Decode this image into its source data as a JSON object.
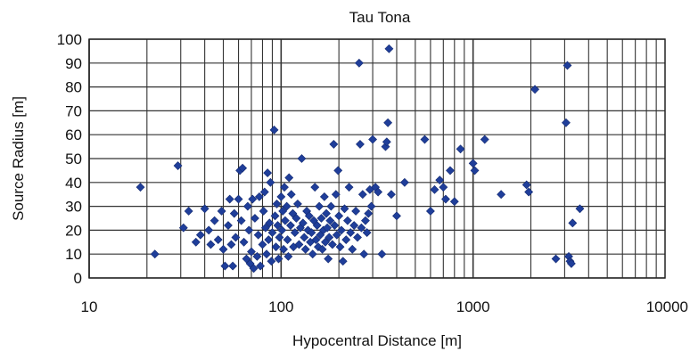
{
  "chart_data": {
    "type": "scatter",
    "title": "Tau Tona",
    "xlabel": "Hypocentral Distance [m]",
    "ylabel": "Source Radius [m]",
    "x_scale": "log",
    "xlim": [
      10,
      10000
    ],
    "ylim": [
      0,
      100
    ],
    "x_ticks": [
      "10",
      "100",
      "1000",
      "10000"
    ],
    "y_ticks": [
      "0",
      "10",
      "20",
      "30",
      "40",
      "50",
      "60",
      "70",
      "80",
      "90",
      "100"
    ],
    "grid": true,
    "legend": "none",
    "marker_color": "#1F3E9A",
    "series": [
      {
        "points": [
          [
            18.5,
            38
          ],
          [
            22,
            10
          ],
          [
            29,
            47
          ],
          [
            31,
            21
          ],
          [
            33,
            28
          ],
          [
            36,
            15
          ],
          [
            38,
            18
          ],
          [
            40,
            29
          ],
          [
            42,
            20
          ],
          [
            43,
            14
          ],
          [
            45,
            24
          ],
          [
            47,
            16
          ],
          [
            49,
            28
          ],
          [
            50,
            12
          ],
          [
            51,
            5
          ],
          [
            53,
            22
          ],
          [
            54,
            33
          ],
          [
            55,
            14
          ],
          [
            56,
            5
          ],
          [
            57,
            27
          ],
          [
            58,
            17
          ],
          [
            60,
            33
          ],
          [
            61,
            45
          ],
          [
            62,
            24
          ],
          [
            63,
            46
          ],
          [
            64,
            15
          ],
          [
            66,
            8
          ],
          [
            67,
            30
          ],
          [
            68,
            20
          ],
          [
            69,
            6
          ],
          [
            70,
            11
          ],
          [
            71,
            33
          ],
          [
            72,
            4
          ],
          [
            73,
            25
          ],
          [
            75,
            9
          ],
          [
            76,
            18
          ],
          [
            77,
            34
          ],
          [
            78,
            5
          ],
          [
            80,
            14
          ],
          [
            81,
            28
          ],
          [
            82,
            36
          ],
          [
            83,
            21
          ],
          [
            84,
            10
          ],
          [
            85,
            44
          ],
          [
            86,
            16
          ],
          [
            87,
            23
          ],
          [
            88,
            40
          ],
          [
            89,
            7
          ],
          [
            90,
            19
          ],
          [
            92,
            62
          ],
          [
            93,
            26
          ],
          [
            94,
            13
          ],
          [
            95,
            31
          ],
          [
            96,
            22
          ],
          [
            97,
            8
          ],
          [
            98,
            17
          ],
          [
            100,
            34
          ],
          [
            101,
            20
          ],
          [
            102,
            28
          ],
          [
            103,
            12
          ],
          [
            104,
            38
          ],
          [
            105,
            24
          ],
          [
            107,
            30
          ],
          [
            108,
            16
          ],
          [
            109,
            9
          ],
          [
            110,
            42
          ],
          [
            112,
            22
          ],
          [
            113,
            35
          ],
          [
            115,
            27
          ],
          [
            116,
            13
          ],
          [
            118,
            19
          ],
          [
            120,
            25
          ],
          [
            122,
            31
          ],
          [
            124,
            14
          ],
          [
            126,
            21
          ],
          [
            128,
            50
          ],
          [
            130,
            23
          ],
          [
            132,
            17
          ],
          [
            134,
            12
          ],
          [
            136,
            28
          ],
          [
            138,
            20
          ],
          [
            140,
            26
          ],
          [
            142,
            15
          ],
          [
            144,
            19
          ],
          [
            146,
            10
          ],
          [
            148,
            24
          ],
          [
            150,
            38
          ],
          [
            152,
            16
          ],
          [
            154,
            22
          ],
          [
            156,
            13
          ],
          [
            158,
            30
          ],
          [
            160,
            18
          ],
          [
            162,
            25
          ],
          [
            164,
            12
          ],
          [
            166,
            20
          ],
          [
            168,
            34
          ],
          [
            170,
            15
          ],
          [
            172,
            27
          ],
          [
            174,
            21
          ],
          [
            176,
            8
          ],
          [
            178,
            17
          ],
          [
            180,
            24
          ],
          [
            182,
            30
          ],
          [
            185,
            14
          ],
          [
            188,
            56
          ],
          [
            190,
            22
          ],
          [
            193,
            35
          ],
          [
            195,
            18
          ],
          [
            198,
            45
          ],
          [
            200,
            26
          ],
          [
            203,
            13
          ],
          [
            206,
            20
          ],
          [
            210,
            7
          ],
          [
            214,
            29
          ],
          [
            218,
            16
          ],
          [
            222,
            24
          ],
          [
            226,
            38
          ],
          [
            230,
            19
          ],
          [
            235,
            12
          ],
          [
            240,
            22
          ],
          [
            245,
            28
          ],
          [
            250,
            17
          ],
          [
            255,
            90
          ],
          [
            258,
            56
          ],
          [
            262,
            21
          ],
          [
            266,
            35
          ],
          [
            270,
            10
          ],
          [
            275,
            24
          ],
          [
            280,
            19
          ],
          [
            285,
            27
          ],
          [
            290,
            37
          ],
          [
            295,
            30
          ],
          [
            300,
            58
          ],
          [
            310,
            38
          ],
          [
            320,
            36
          ],
          [
            335,
            10
          ],
          [
            350,
            55
          ],
          [
            355,
            57
          ],
          [
            360,
            65
          ],
          [
            365,
            96
          ],
          [
            375,
            35
          ],
          [
            400,
            26
          ],
          [
            440,
            40
          ],
          [
            560,
            58
          ],
          [
            600,
            28
          ],
          [
            630,
            37
          ],
          [
            670,
            41
          ],
          [
            700,
            38
          ],
          [
            720,
            33
          ],
          [
            760,
            45
          ],
          [
            800,
            32
          ],
          [
            860,
            54
          ],
          [
            1000,
            48
          ],
          [
            1020,
            45
          ],
          [
            1150,
            58
          ],
          [
            1400,
            35
          ],
          [
            1900,
            39
          ],
          [
            1950,
            36
          ],
          [
            2100,
            79
          ],
          [
            2700,
            8
          ],
          [
            3050,
            65
          ],
          [
            3100,
            89
          ],
          [
            3150,
            9
          ],
          [
            3200,
            7
          ],
          [
            3250,
            6
          ],
          [
            3300,
            23
          ],
          [
            3600,
            29
          ]
        ]
      }
    ]
  }
}
